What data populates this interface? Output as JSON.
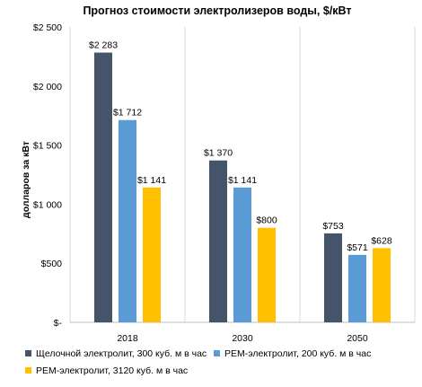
{
  "chart_data": {
    "type": "bar",
    "title": "Прогноз стоимости электролизеров воды, $/кВт",
    "ylabel": "долларов за кВт",
    "xlabel": "",
    "categories": [
      "2018",
      "2030",
      "2050"
    ],
    "ylim": [
      0,
      2500
    ],
    "yticks": [
      0,
      500,
      1000,
      1500,
      2000,
      2500
    ],
    "ytick_labels": [
      "$-",
      "$500",
      "$1 000",
      "$1 500",
      "$2 000",
      "$2 500"
    ],
    "grid": "vertical separators between categories",
    "legend_position": "bottom",
    "series": [
      {
        "name": "Щелочной электролит, 300 куб. м в час",
        "color": "#44546A",
        "values": [
          2283,
          1370,
          753
        ],
        "labels": [
          "$2 283",
          "$1 370",
          "$753"
        ]
      },
      {
        "name": "PEM-электролит, 200 куб. м в час",
        "color": "#5B9BD5",
        "values": [
          1712,
          1141,
          571
        ],
        "labels": [
          "$1 712",
          "$1 141",
          "$571"
        ]
      },
      {
        "name": "PEM-электролит, 3120 куб. м в час",
        "color": "#FFC000",
        "values": [
          1141,
          800,
          628
        ],
        "labels": [
          "$1 141",
          "$800",
          "$628"
        ]
      }
    ]
  }
}
